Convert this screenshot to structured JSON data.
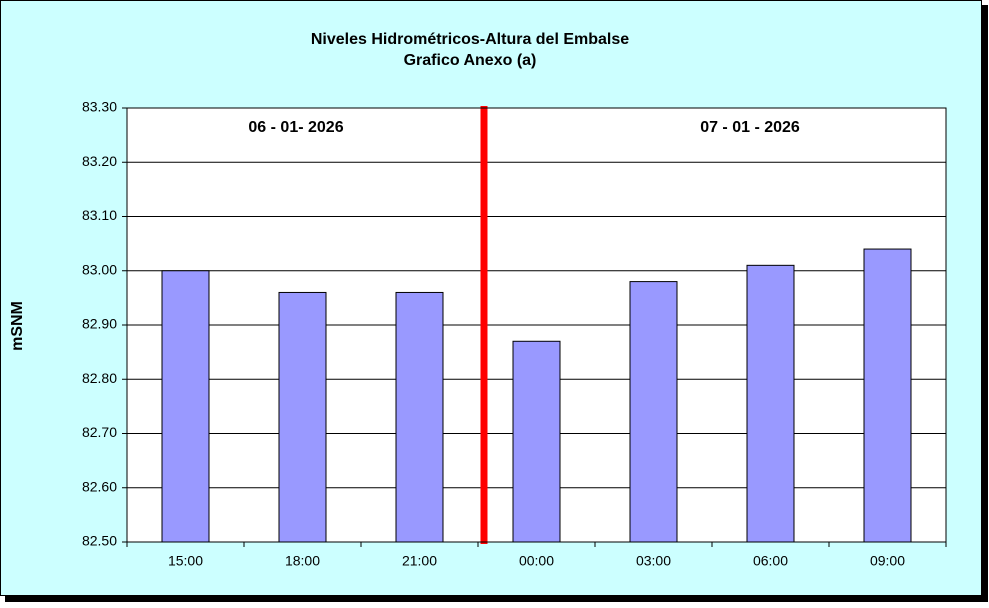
{
  "chart_data": {
    "type": "bar",
    "title": "Niveles Hidrométricos-Altura del Embalse",
    "subtitle": "Grafico Anexo (a)",
    "y_label": "mSNM",
    "annotations": [
      "06 - 01- 2026",
      "07 - 01 - 2026"
    ],
    "categories": [
      "15:00",
      "18:00",
      "21:00",
      "00:00",
      "03:00",
      "06:00",
      "09:00"
    ],
    "values": [
      83.0,
      82.96,
      82.96,
      82.87,
      82.98,
      83.01,
      83.04
    ],
    "color": "#9999ff",
    "ylim": [
      82.5,
      83.3
    ],
    "yticks": [
      {
        "value": 82.5,
        "label": "82.50"
      },
      {
        "value": 82.6,
        "label": "82.60"
      },
      {
        "value": 82.7,
        "label": "82.70"
      },
      {
        "value": 82.8,
        "label": "82.80"
      },
      {
        "value": 82.9,
        "label": "82.90"
      },
      {
        "value": 83.0,
        "label": "83.00"
      },
      {
        "value": 83.1,
        "label": "83.10"
      },
      {
        "value": 83.2,
        "label": "83.20"
      },
      {
        "value": 83.3,
        "label": "83.30"
      }
    ],
    "grid": true
  }
}
